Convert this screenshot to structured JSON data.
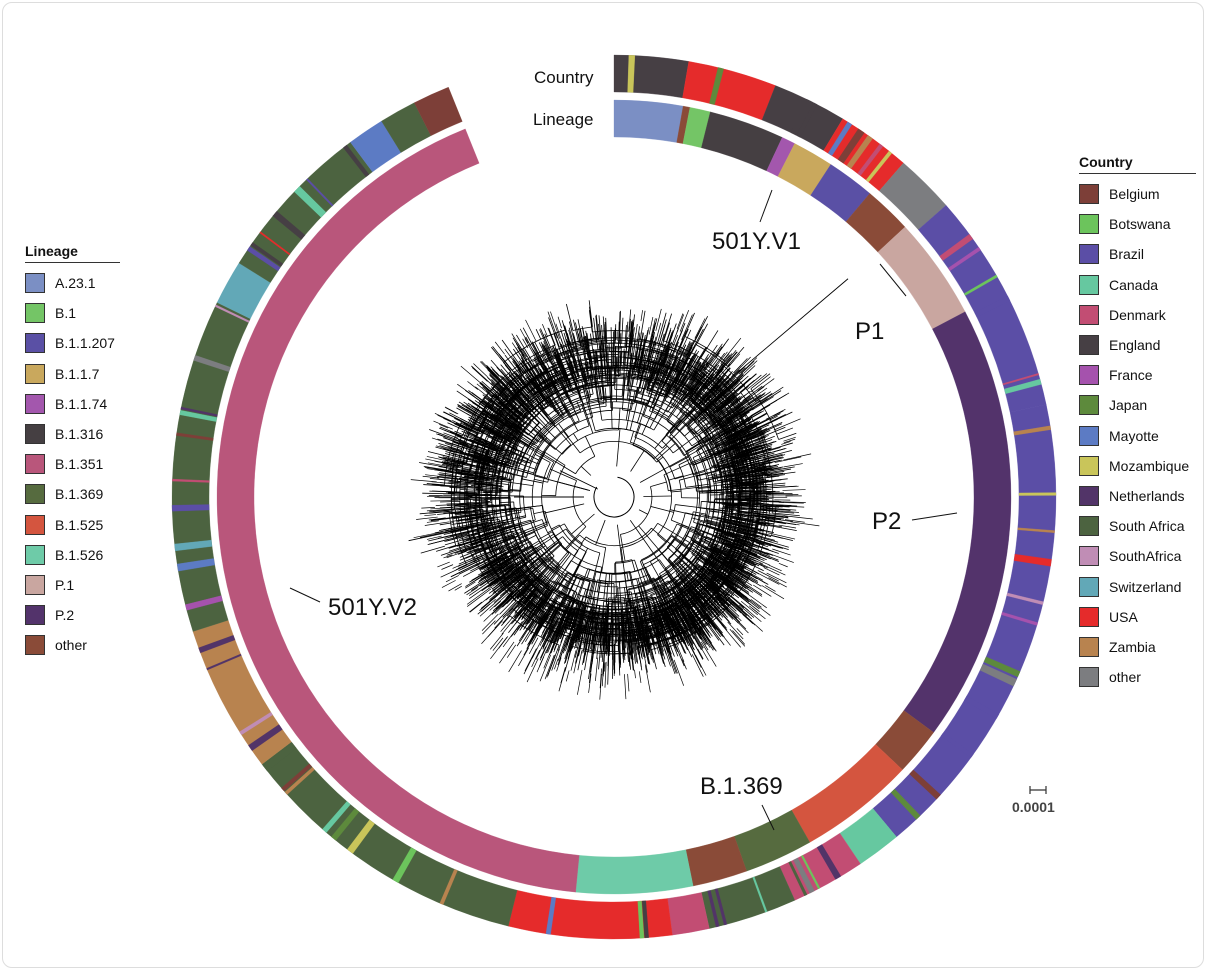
{
  "ring_labels": {
    "country": "Country",
    "lineage": "Lineage"
  },
  "annotations": [
    "501Y.V1",
    "P1",
    "P2",
    "B.1.369",
    "501Y.V2"
  ],
  "scale_bar": {
    "value": "0.0001"
  },
  "lineage_legend": {
    "title": "Lineage",
    "items": [
      {
        "label": "A.23.1",
        "color": "#7b8fc4"
      },
      {
        "label": "B.1",
        "color": "#74c566"
      },
      {
        "label": "B.1.1.207",
        "color": "#5a50a5"
      },
      {
        "label": "B.1.1.7",
        "color": "#c9a85d"
      },
      {
        "label": "B.1.1.74",
        "color": "#a357ad"
      },
      {
        "label": "B.1.316",
        "color": "#453f42"
      },
      {
        "label": "B.1.351",
        "color": "#b9567b"
      },
      {
        "label": "B.1.369",
        "color": "#566b3f"
      },
      {
        "label": "B.1.525",
        "color": "#d4553f"
      },
      {
        "label": "B.1.526",
        "color": "#6ecba8"
      },
      {
        "label": "P.1",
        "color": "#c9a6a0"
      },
      {
        "label": "P.2",
        "color": "#53336b"
      },
      {
        "label": "other",
        "color": "#8a4b38"
      }
    ]
  },
  "country_legend": {
    "title": "Country",
    "items": [
      {
        "label": "Belgium",
        "color": "#7d3f38"
      },
      {
        "label": "Botswana",
        "color": "#6cc45c"
      },
      {
        "label": "Brazil",
        "color": "#5b4ea6"
      },
      {
        "label": "Canada",
        "color": "#66c8a0"
      },
      {
        "label": "Denmark",
        "color": "#c24d73"
      },
      {
        "label": "England",
        "color": "#463f44"
      },
      {
        "label": "France",
        "color": "#a552ad"
      },
      {
        "label": "Japan",
        "color": "#5d8a3c"
      },
      {
        "label": "Mayotte",
        "color": "#5c7bc4"
      },
      {
        "label": "Mozambique",
        "color": "#c9c55a"
      },
      {
        "label": "Netherlands",
        "color": "#523468"
      },
      {
        "label": "South Africa",
        "color": "#4c6340"
      },
      {
        "label": "SouthAfrica",
        "color": "#c08db5"
      },
      {
        "label": "Switzerland",
        "color": "#62a8b7"
      },
      {
        "label": "USA",
        "color": "#e52b2b"
      },
      {
        "label": "Zambia",
        "color": "#b8834f"
      },
      {
        "label": "other",
        "color": "#7c7d80"
      }
    ]
  },
  "lineage_ring": [
    {
      "lineage": "A.23.1",
      "weight": 10
    },
    {
      "lineage": "other",
      "weight": 1
    },
    {
      "lineage": "B.1",
      "weight": 3
    },
    {
      "lineage": "B.1.316",
      "weight": 11
    },
    {
      "lineage": "B.1.1.74",
      "weight": 2
    },
    {
      "lineage": "B.1.1.7",
      "weight": 6
    },
    {
      "lineage": "B.1.1.207",
      "weight": 7
    },
    {
      "lineage": "other",
      "weight": 7
    },
    {
      "lineage": "P.1",
      "weight": 15
    },
    {
      "lineage": "P.2",
      "weight": 64
    },
    {
      "lineage": "other",
      "weight": 7
    },
    {
      "lineage": "B.1.525",
      "weight": 17
    },
    {
      "lineage": "B.1.369",
      "weight": 10
    },
    {
      "lineage": "other",
      "weight": 8
    },
    {
      "lineage": "B.1.526",
      "weight": 17
    },
    {
      "lineage": "B.1.351",
      "weight": 152
    }
  ],
  "country_ring": [
    {
      "country": "England",
      "weight": 10
    },
    {
      "country": "USA",
      "weight": 12
    },
    {
      "country": "England",
      "weight": 10
    },
    {
      "country": "USA",
      "weight": 10
    },
    {
      "country": "other",
      "weight": 8
    },
    {
      "country": "Brazil",
      "weight": 30
    },
    {
      "country": "Brazil",
      "weight": 64
    },
    {
      "country": "Canada",
      "weight": 6
    },
    {
      "country": "Denmark",
      "weight": 10
    },
    {
      "country": "South Africa",
      "weight": 12
    },
    {
      "country": "Denmark",
      "weight": 5
    },
    {
      "country": "USA",
      "weight": 22
    },
    {
      "country": "South Africa",
      "weight": 40
    },
    {
      "country": "Zambia",
      "weight": 20
    },
    {
      "country": "South Africa",
      "weight": 45
    },
    {
      "country": "Switzerland",
      "weight": 6
    },
    {
      "country": "South Africa",
      "weight": 22
    },
    {
      "country": "Mayotte",
      "weight": 5
    },
    {
      "country": "South Africa",
      "weight": 5
    },
    {
      "country": "Belgium",
      "weight": 5
    }
  ]
}
